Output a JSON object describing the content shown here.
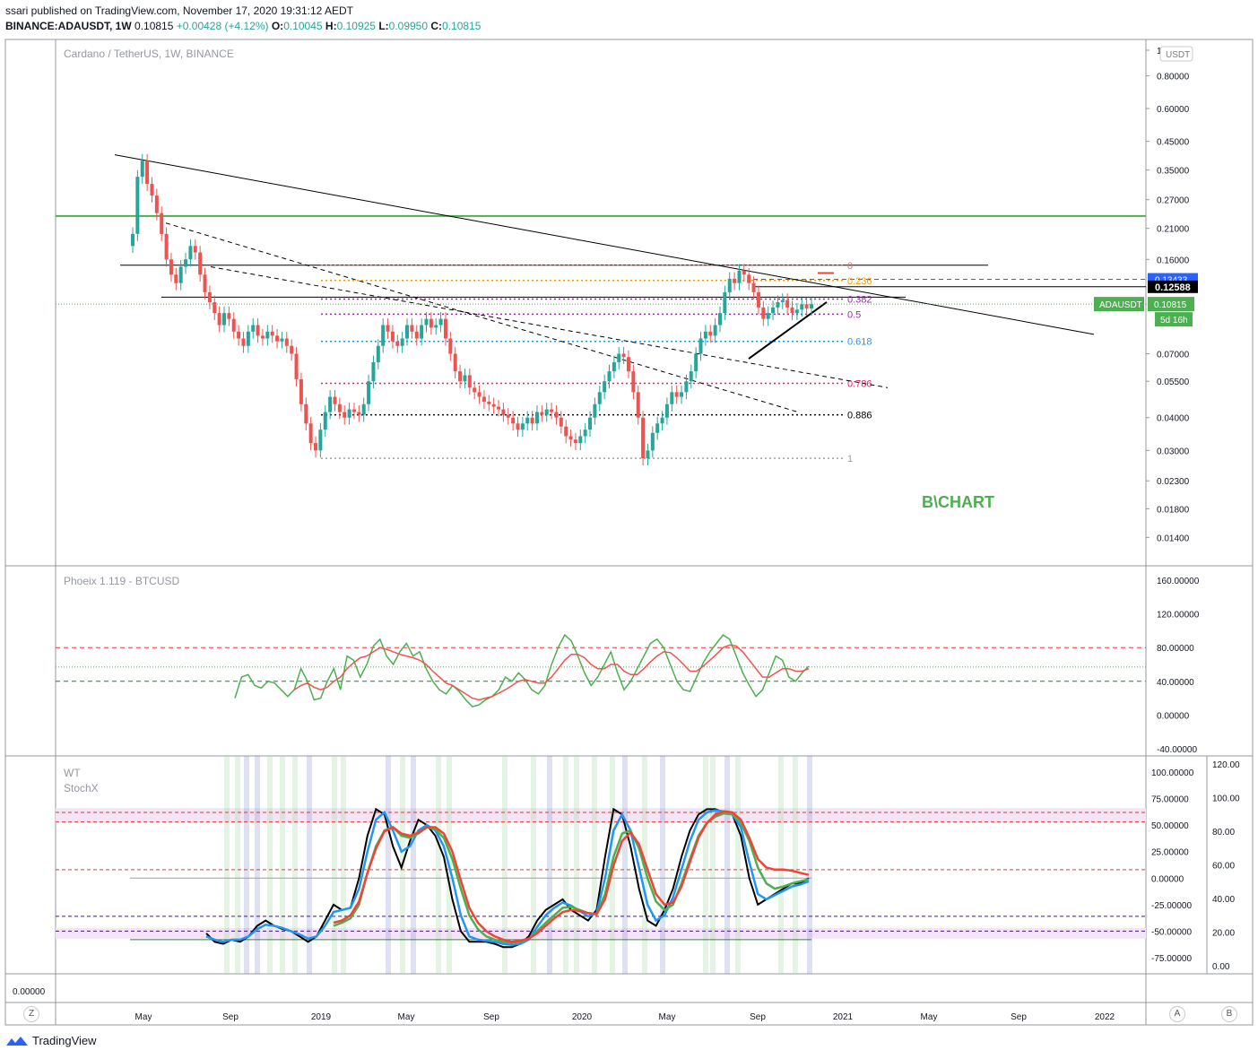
{
  "header": {
    "published": "ssari published on TradingView.com, November 17, 2020 19:31:12 AEDT",
    "symbol": "BINANCE:ADAUSDT, 1W",
    "price": "0.10815",
    "change": "+0.00428 (+4.12%)",
    "o_label": "O:",
    "o": "0.10045",
    "h_label": "H:",
    "h": "0.10925",
    "l_label": "L:",
    "l": "0.09950",
    "c_label": "C:",
    "c": "0.10815"
  },
  "brand": {
    "name": "TradingView",
    "icon": "tradingview-logo-icon"
  },
  "buttons": {
    "z": "Z",
    "a": "A",
    "b": "B"
  },
  "colors": {
    "up": "#26a69a",
    "down": "#ef5350",
    "green_line": "#4caf50",
    "accent": "#2962ff"
  },
  "chart_data": [
    {
      "type": "candlestick",
      "title": "Cardano / TetherUS, 1W, BINANCE",
      "watermark": "B\\CHART",
      "currency_button": "USDT",
      "scale": "log",
      "ylim": [
        0.012,
        1
      ],
      "y_ticks": [
        "1",
        "0.80000",
        "0.60000",
        "0.45000",
        "0.35000",
        "0.27000",
        "0.21000",
        "0.16000",
        "0.07000",
        "0.05500",
        "0.04000",
        "0.03000",
        "0.02300",
        "0.01800",
        "0.01400"
      ],
      "x_ticks": [
        "May",
        "Sep",
        "2019",
        "May",
        "Sep",
        "2020",
        "May",
        "Sep",
        "2021",
        "May",
        "Sep",
        "2022"
      ],
      "labels": {
        "last_price_tag": "ADAUSDT",
        "last_price": "0.10815",
        "countdown": "5d 16h",
        "level_tag": "0.12588",
        "blue_tag": "0.13433"
      },
      "fib_levels": [
        {
          "label": "0",
          "value": 0.152,
          "color": "#e57373"
        },
        {
          "label": "0.236",
          "value": 0.133,
          "color": "#ff9800"
        },
        {
          "label": "0.382",
          "value": 0.113,
          "color": "#9c27b0"
        },
        {
          "label": "0.5",
          "value": 0.099,
          "color": "#9c27b0"
        },
        {
          "label": "0.618",
          "value": 0.078,
          "color": "#2196f3"
        },
        {
          "label": "0.786",
          "value": 0.054,
          "color": "#e91e63"
        },
        {
          "label": "0.886",
          "value": 0.041,
          "color": "#000000"
        },
        {
          "label": "1",
          "value": 0.028,
          "color": "#9e9e9e"
        }
      ],
      "horizontal_lines": [
        {
          "value": 0.234,
          "color": "#4caf50"
        },
        {
          "value": 0.152,
          "color": "#000000"
        },
        {
          "value": 0.12588,
          "color": "#000000"
        },
        {
          "value": 0.13433,
          "color": "#2962ff"
        }
      ],
      "close": [
        0.2,
        0.33,
        0.38,
        0.31,
        0.28,
        0.24,
        0.2,
        0.16,
        0.14,
        0.13,
        0.15,
        0.16,
        0.18,
        0.17,
        0.14,
        0.12,
        0.11,
        0.1,
        0.09,
        0.1,
        0.095,
        0.085,
        0.08,
        0.075,
        0.085,
        0.09,
        0.082,
        0.08,
        0.085,
        0.082,
        0.078,
        0.08,
        0.075,
        0.07,
        0.056,
        0.045,
        0.038,
        0.032,
        0.03,
        0.036,
        0.042,
        0.048,
        0.045,
        0.042,
        0.04,
        0.043,
        0.042,
        0.041,
        0.045,
        0.055,
        0.065,
        0.075,
        0.09,
        0.085,
        0.078,
        0.075,
        0.08,
        0.09,
        0.085,
        0.08,
        0.09,
        0.095,
        0.088,
        0.09,
        0.095,
        0.08,
        0.07,
        0.06,
        0.055,
        0.058,
        0.052,
        0.05,
        0.048,
        0.046,
        0.045,
        0.044,
        0.043,
        0.041,
        0.04,
        0.038,
        0.036,
        0.038,
        0.04,
        0.038,
        0.042,
        0.041,
        0.043,
        0.042,
        0.04,
        0.037,
        0.034,
        0.033,
        0.032,
        0.034,
        0.036,
        0.04,
        0.045,
        0.05,
        0.055,
        0.06,
        0.065,
        0.07,
        0.068,
        0.06,
        0.05,
        0.04,
        0.028,
        0.03,
        0.035,
        0.038,
        0.04,
        0.045,
        0.05,
        0.048,
        0.05,
        0.055,
        0.06,
        0.07,
        0.08,
        0.085,
        0.082,
        0.09,
        0.1,
        0.12,
        0.135,
        0.13,
        0.145,
        0.14,
        0.13,
        0.12,
        0.105,
        0.095,
        0.1,
        0.105,
        0.11,
        0.112,
        0.105,
        0.1,
        0.103,
        0.108,
        0.104,
        0.10815
      ],
      "trendlines_note": "",
      "indicators": [
        {
          "name": "Phoeix 1.119 - BTCUSD",
          "ylim": [
            -40,
            160
          ],
          "y_ticks": [
            "160.00000",
            "120.00000",
            "80.00000",
            "40.00000",
            "0.00000",
            "-40.00000"
          ],
          "lines": [
            80,
            40
          ],
          "series": [
            {
              "color": "#4caf50",
              "values": [
                20,
                45,
                48,
                35,
                32,
                40,
                38,
                30,
                22,
                30,
                55,
                40,
                18,
                20,
                40,
                55,
                30,
                70,
                65,
                45,
                60,
                82,
                90,
                70,
                60,
                75,
                85,
                70,
                75,
                55,
                40,
                30,
                25,
                35,
                28,
                18,
                10,
                12,
                18,
                22,
                30,
                45,
                40,
                50,
                42,
                30,
                25,
                35,
                60,
                80,
                95,
                88,
                70,
                50,
                35,
                45,
                60,
                75,
                50,
                30,
                40,
                55,
                70,
                85,
                90,
                80,
                60,
                40,
                30,
                28,
                45,
                62,
                75,
                85,
                95,
                90,
                70,
                50,
                35,
                22,
                30,
                50,
                70,
                65,
                45,
                40,
                50,
                58
              ]
            },
            {
              "color": "#ef5350",
              "values": [
                null,
                null,
                null,
                null,
                null,
                null,
                null,
                null,
                null,
                30,
                35,
                38,
                33,
                30,
                33,
                40,
                45,
                55,
                62,
                68,
                70,
                75,
                80,
                78,
                75,
                72,
                70,
                68,
                65,
                60,
                52,
                45,
                38,
                35,
                30,
                25,
                20,
                18,
                20,
                22,
                26,
                30,
                35,
                40,
                42,
                40,
                38,
                38,
                45,
                55,
                65,
                72,
                72,
                68,
                60,
                55,
                55,
                60,
                60,
                52,
                48,
                48,
                55,
                63,
                70,
                75,
                74,
                68,
                60,
                52,
                52,
                58,
                65,
                72,
                80,
                83,
                82,
                75,
                65,
                55,
                45,
                45,
                50,
                55,
                55,
                52,
                52,
                55
              ]
            }
          ]
        },
        {
          "name": "WT",
          "name2": "StochX",
          "ylim": [
            -75,
            100
          ],
          "y_ticks": [
            "100.00000",
            "75.00000",
            "50.00000",
            "25.00000",
            "0.00000",
            "-25.00000",
            "-50.00000",
            "-75.00000"
          ],
          "y_ticks_right": [
            "120.00",
            "100.00",
            "80.00",
            "60.00",
            "40.00",
            "20.00",
            "0.00"
          ],
          "series": [
            {
              "color": "#000000",
              "values": [
                -52,
                -60,
                -62,
                -58,
                -60,
                -55,
                -45,
                -40,
                -45,
                -48,
                -50,
                -55,
                -60,
                -55,
                -40,
                -25,
                -30,
                -28,
                0,
                40,
                65,
                60,
                30,
                10,
                35,
                55,
                50,
                40,
                20,
                -20,
                -50,
                -60,
                -60,
                -60,
                -62,
                -65,
                -65,
                -62,
                -55,
                -40,
                -30,
                -25,
                -20,
                -30,
                -35,
                -40,
                -30,
                20,
                65,
                60,
                30,
                -10,
                -40,
                -45,
                -30,
                -10,
                20,
                45,
                60,
                65,
                65,
                62,
                60,
                40,
                0,
                -25,
                -20,
                -15,
                -10,
                -5,
                -5,
                0
              ]
            },
            {
              "color": "#2196f3",
              "values": [
                -55,
                -58,
                -60,
                -58,
                -58,
                -55,
                -48,
                -44,
                -45,
                -47,
                -50,
                -53,
                -57,
                -55,
                -45,
                -32,
                -30,
                -28,
                -10,
                25,
                55,
                62,
                45,
                25,
                30,
                45,
                50,
                45,
                30,
                0,
                -35,
                -55,
                -58,
                -59,
                -60,
                -62,
                -63,
                -62,
                -58,
                -46,
                -35,
                -28,
                -23,
                -26,
                -31,
                -36,
                -33,
                0,
                45,
                60,
                45,
                10,
                -25,
                -40,
                -35,
                -18,
                8,
                35,
                55,
                62,
                64,
                63,
                60,
                48,
                15,
                -15,
                -20,
                -16,
                -12,
                -8,
                -6,
                -3
              ]
            },
            {
              "color": "#4caf50",
              "values": [
                null,
                null,
                null,
                null,
                null,
                null,
                null,
                null,
                null,
                null,
                null,
                null,
                null,
                null,
                null,
                -45,
                -42,
                -38,
                -25,
                5,
                30,
                45,
                48,
                40,
                38,
                42,
                48,
                46,
                38,
                18,
                -10,
                -35,
                -48,
                -55,
                -58,
                -60,
                -61,
                -60,
                -57,
                -50,
                -42,
                -35,
                -28,
                -27,
                -30,
                -33,
                -34,
                -15,
                20,
                42,
                45,
                28,
                0,
                -22,
                -30,
                -25,
                -5,
                18,
                40,
                52,
                58,
                61,
                60,
                52,
                35,
                10,
                -5,
                -10,
                -8,
                -5,
                -3,
                -1
              ]
            },
            {
              "color": "#f44336",
              "values": [
                null,
                null,
                null,
                null,
                null,
                null,
                null,
                null,
                null,
                null,
                null,
                null,
                null,
                null,
                null,
                -42,
                -40,
                -35,
                -22,
                5,
                28,
                44,
                48,
                42,
                40,
                43,
                48,
                48,
                42,
                25,
                -2,
                -28,
                -42,
                -50,
                -55,
                -58,
                -60,
                -59,
                -57,
                -52,
                -45,
                -38,
                -32,
                -30,
                -31,
                -33,
                -34,
                -20,
                12,
                35,
                43,
                32,
                8,
                -15,
                -25,
                -23,
                -8,
                15,
                38,
                52,
                60,
                63,
                62,
                55,
                38,
                18,
                10,
                8,
                8,
                7,
                5,
                3
              ]
            }
          ]
        }
      ]
    }
  ]
}
